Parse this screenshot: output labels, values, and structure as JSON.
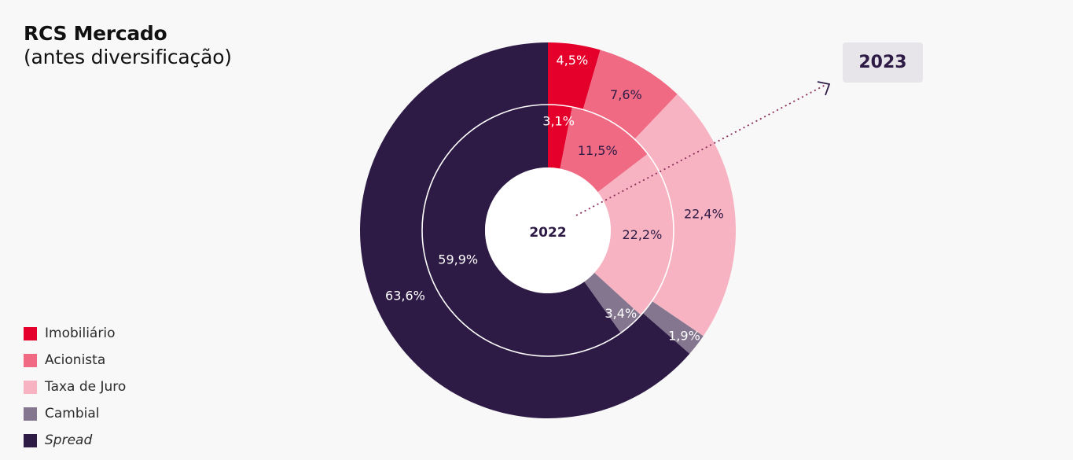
{
  "header": {
    "title": "RCS Mercado",
    "subtitle": "(antes diversificação)"
  },
  "chart_data": {
    "type": "donut",
    "title": "RCS Mercado",
    "subtitle": "(antes diversificação)",
    "categories": [
      "Imobiliário",
      "Acionista",
      "Taxa de Juro",
      "Cambial",
      "Spread"
    ],
    "colors": [
      "#e4002b",
      "#f06a84",
      "#f7b3c2",
      "#84768f",
      "#2d1a45"
    ],
    "inner_year_label": "2022",
    "outer_year_label": "2023",
    "series": [
      {
        "name": "2022",
        "ring": "inner",
        "values": [
          3.1,
          11.5,
          22.2,
          3.4,
          59.9
        ],
        "labels": [
          "3,1%",
          "11,5%",
          "22,2%",
          "3,4%",
          "59,9%"
        ]
      },
      {
        "name": "2023",
        "ring": "outer",
        "values": [
          4.5,
          7.6,
          22.4,
          1.9,
          63.6
        ],
        "labels": [
          "4,5%",
          "7,6%",
          "22,4%",
          "1,9%",
          "63,6%"
        ]
      }
    ],
    "label_colors": [
      "#ffffff",
      "#2d1a45",
      "#2d1a45",
      "#ffffff",
      "#ffffff"
    ],
    "legend_position": "bottom-left",
    "legend_italic": [
      false,
      false,
      false,
      false,
      true
    ]
  }
}
